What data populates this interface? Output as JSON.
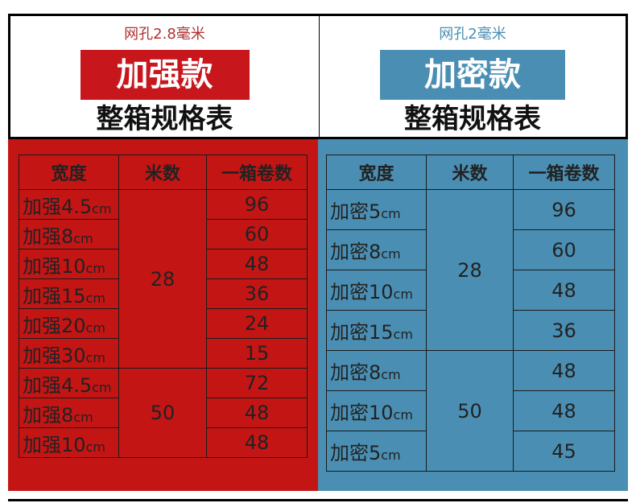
{
  "left": {
    "mesh": "网孔2.8毫米",
    "badge": "加强款",
    "subtitle": "整箱规格表",
    "headers": [
      "宽度",
      "米数",
      "一箱卷数"
    ],
    "names": [
      "加强4.5",
      "加强8",
      "加强10",
      "加强15",
      "加强20",
      "加强30",
      "加强4.5",
      "加强8",
      "加强10"
    ],
    "unit": "cm",
    "meters": [
      "28",
      "50"
    ],
    "rolls": [
      "96",
      "60",
      "48",
      "36",
      "24",
      "15",
      "72",
      "48",
      "48"
    ]
  },
  "right": {
    "mesh": "网孔2毫米",
    "badge": "加密款",
    "subtitle": "整箱规格表",
    "headers": [
      "宽度",
      "米数",
      "一箱卷数"
    ],
    "names": [
      "加密5",
      "加密8",
      "加密10",
      "加密15",
      "加密8",
      "加密10",
      "加密5"
    ],
    "unit": "cm",
    "meters": [
      "28",
      "50"
    ],
    "rolls": [
      "96",
      "60",
      "48",
      "36",
      "48",
      "48",
      "45"
    ]
  },
  "colors": {
    "red": "#c41515",
    "blue": "#4a8fb3"
  }
}
